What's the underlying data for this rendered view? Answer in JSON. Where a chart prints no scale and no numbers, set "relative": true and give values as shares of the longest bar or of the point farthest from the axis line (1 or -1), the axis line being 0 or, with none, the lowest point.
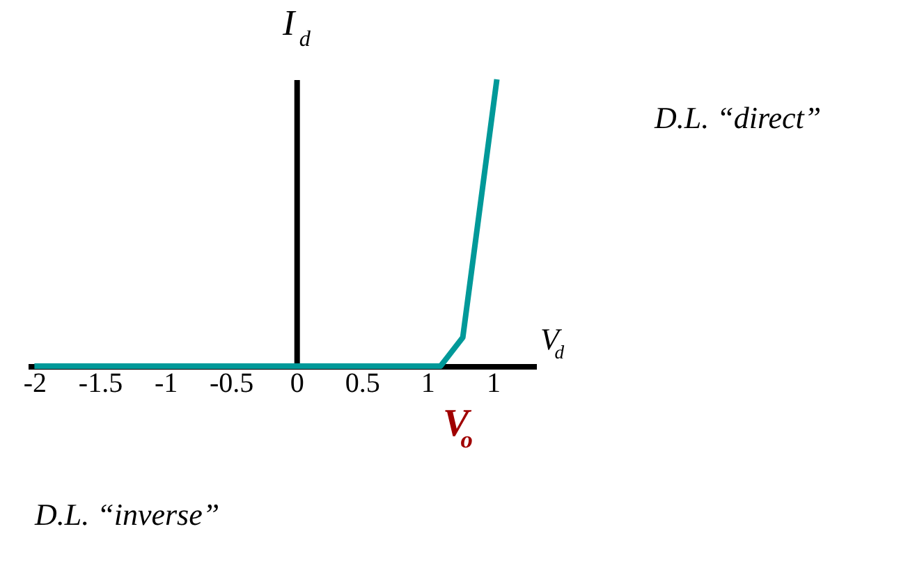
{
  "chart_data": {
    "type": "line",
    "relative": true,
    "x": [
      -2,
      1.1,
      1.27,
      1.53
    ],
    "series": [
      {
        "color": "#009999",
        "values": [
          0,
          0,
          0.1,
          1
        ]
      }
    ],
    "xlim": [
      -2.05,
      1.83
    ],
    "xticks": [
      -2,
      -1.5,
      -1,
      -0.5,
      0,
      0.5,
      1,
      {
        "value": 1.5,
        "label": "1"
      }
    ],
    "marker": "none",
    "line_style": "solid",
    "annotations": [
      "I$_{d}$",
      "V$_{d}$",
      "V$_{o}$",
      "D.L. “direct”",
      "D.L. “inverse”"
    ]
  }
}
